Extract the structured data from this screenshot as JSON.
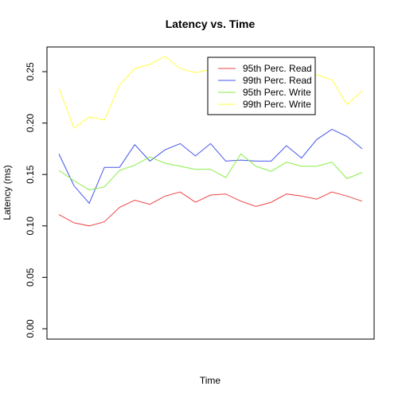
{
  "chart_data": {
    "type": "line",
    "title": "Latency vs. Time",
    "xlabel": "Time",
    "ylabel": "Latency (ms)",
    "ylim": [
      0,
      0.27
    ],
    "yticks": [
      "0.00",
      "0.05",
      "0.10",
      "0.15",
      "0.20",
      "0.25"
    ],
    "grid": false,
    "legend_position": "top-right",
    "series": [
      {
        "name": "95th Perc. Read",
        "color": "#ee4444",
        "values": [
          0.111,
          0.103,
          0.1,
          0.104,
          0.118,
          0.125,
          0.121,
          0.129,
          0.133,
          0.123,
          0.13,
          0.131,
          0.124,
          0.119,
          0.123,
          0.131,
          0.129,
          0.126,
          0.133,
          0.129,
          0.124
        ]
      },
      {
        "name": "99th Perc. Read",
        "color": "#4455ee",
        "values": [
          0.17,
          0.139,
          0.122,
          0.157,
          0.157,
          0.179,
          0.163,
          0.174,
          0.18,
          0.168,
          0.18,
          0.163,
          0.164,
          0.163,
          0.163,
          0.178,
          0.166,
          0.184,
          0.194,
          0.187,
          0.175
        ]
      },
      {
        "name": "95th Perc. Write",
        "color": "#88ee44",
        "values": [
          0.154,
          0.144,
          0.135,
          0.138,
          0.154,
          0.159,
          0.167,
          0.161,
          0.158,
          0.155,
          0.155,
          0.147,
          0.17,
          0.158,
          0.153,
          0.162,
          0.158,
          0.158,
          0.162,
          0.146,
          0.152
        ]
      },
      {
        "name": "99th Perc. Write",
        "color": "#ffff44",
        "values": [
          0.234,
          0.195,
          0.206,
          0.203,
          0.237,
          0.253,
          0.257,
          0.265,
          0.253,
          0.249,
          0.252,
          0.251,
          0.25,
          0.249,
          0.248,
          0.254,
          0.25,
          0.247,
          0.242,
          0.218,
          0.231
        ]
      }
    ]
  }
}
